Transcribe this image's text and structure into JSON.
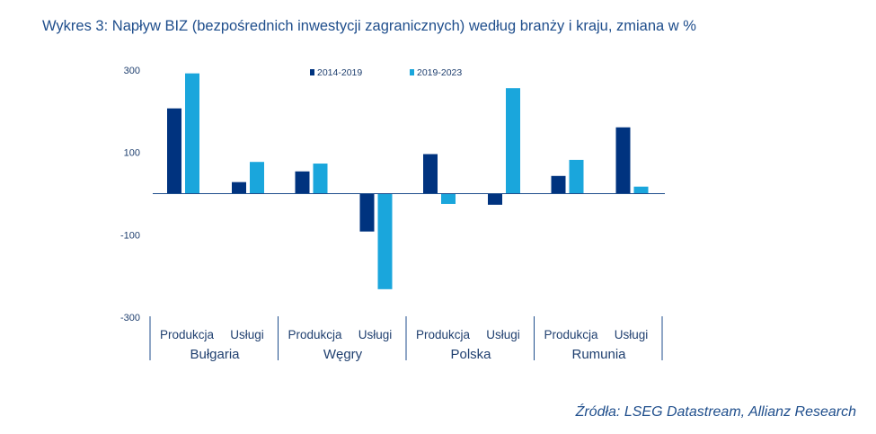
{
  "title": "Wykres 3: Napływ BIZ (bezpośrednich inwestycji zagranicznych) według branży i kraju, zmiana w %",
  "source": "Źródła: LSEG Datastream, Allianz Research",
  "colors": {
    "series1": "#00337f",
    "series2": "#1aa6dc",
    "text": "#1f4e8c",
    "axis": "#1f4e8c"
  },
  "chart_data": {
    "type": "bar",
    "title": "Wykres 3: Napływ BIZ (bezpośrednich inwestycji zagranicznych) według branży i kraju, zmiana w %",
    "countries": [
      "Bułgaria",
      "Węgry",
      "Polska",
      "Rumunia"
    ],
    "sectors": [
      "Produkcja",
      "Usługi"
    ],
    "categories": [
      "Bułgaria – Produkcja",
      "Bułgaria – Usługi",
      "Węgry – Produkcja",
      "Węgry – Usługi",
      "Polska – Produkcja",
      "Polska – Usługi",
      "Rumunia – Produkcja",
      "Rumunia – Usługi"
    ],
    "series": [
      {
        "name": "2014-2019",
        "values": [
          207,
          28,
          54,
          -92,
          96,
          -27,
          43,
          161
        ]
      },
      {
        "name": "2019-2023",
        "values": [
          292,
          77,
          73,
          -232,
          -25,
          256,
          82,
          17
        ]
      }
    ],
    "yticks": [
      300,
      100,
      -100,
      -300
    ],
    "ylim": [
      -300,
      300
    ],
    "grid": false,
    "legend": "top-center"
  }
}
